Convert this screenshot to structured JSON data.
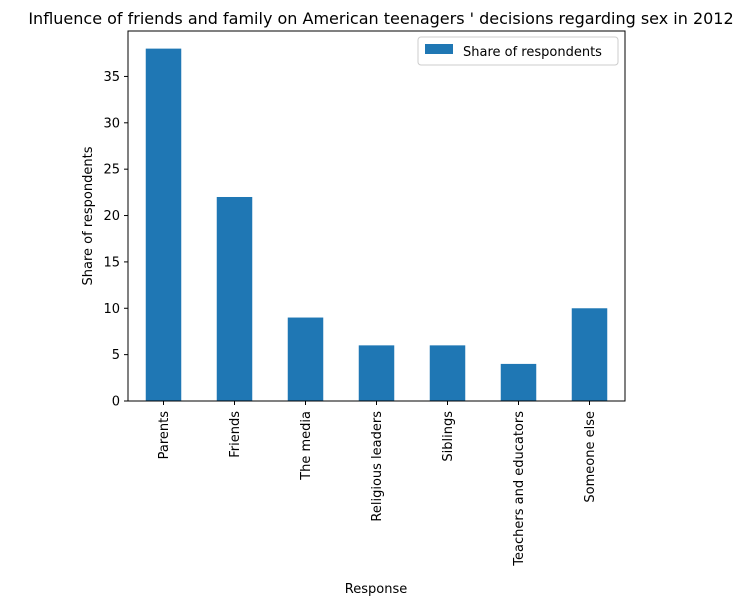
{
  "chart_data": {
    "type": "bar",
    "title": "Influence of friends and family on American teenagers ' decisions regarding sex in 2012",
    "xlabel": "Response",
    "ylabel": "Share of respondents",
    "categories": [
      "Parents",
      "Friends",
      "The media",
      "Religious leaders",
      "Siblings",
      "Teachers and educators",
      "Someone else"
    ],
    "series": [
      {
        "name": "Share of respondents",
        "values": [
          38,
          22,
          9,
          6,
          6,
          4,
          10
        ],
        "color": "#1f77b4"
      }
    ],
    "ylim": [
      0,
      39.9
    ],
    "yticks": [
      "0",
      "5",
      "10",
      "15",
      "20",
      "25",
      "30",
      "35"
    ],
    "grid": false,
    "legend_position": "top-right"
  }
}
